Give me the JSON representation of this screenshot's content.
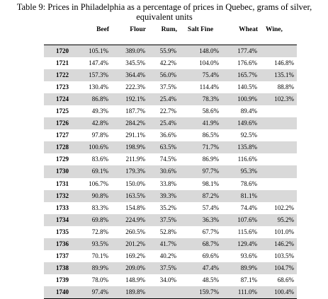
{
  "caption": "Table 9: Prices in Philadelphia as a percentage of prices in Quebec, grams of silver, equivalent units",
  "headers": [
    "",
    "Beef",
    "Flour",
    "Rum,",
    "Salt Fine",
    "Wheat",
    "Wine,"
  ],
  "rows": [
    [
      "1720",
      "105.1%",
      "389.0%",
      "55.9%",
      "148.0%",
      "177.4%",
      ""
    ],
    [
      "1721",
      "147.4%",
      "345.5%",
      "42.2%",
      "104.0%",
      "176.6%",
      "146.8%"
    ],
    [
      "1722",
      "157.3%",
      "364.4%",
      "56.0%",
      "75.4%",
      "165.7%",
      "135.1%"
    ],
    [
      "1723",
      "130.4%",
      "222.3%",
      "37.5%",
      "114.4%",
      "140.5%",
      "88.8%"
    ],
    [
      "1724",
      "86.8%",
      "192.1%",
      "25.4%",
      "78.3%",
      "100.9%",
      "102.3%"
    ],
    [
      "1725",
      "49.3%",
      "187.7%",
      "22.7%",
      "58.6%",
      "89.4%",
      ""
    ],
    [
      "1726",
      "42.8%",
      "284.2%",
      "25.4%",
      "41.9%",
      "149.6%",
      ""
    ],
    [
      "1727",
      "97.8%",
      "291.1%",
      "36.6%",
      "86.5%",
      "92.5%",
      ""
    ],
    [
      "1728",
      "100.6%",
      "198.9%",
      "63.5%",
      "71.7%",
      "135.8%",
      ""
    ],
    [
      "1729",
      "83.6%",
      "211.9%",
      "74.5%",
      "86.9%",
      "116.6%",
      ""
    ],
    [
      "1730",
      "69.1%",
      "179.3%",
      "30.6%",
      "97.7%",
      "95.3%",
      ""
    ],
    [
      "1731",
      "106.7%",
      "150.0%",
      "33.8%",
      "98.1%",
      "78.6%",
      ""
    ],
    [
      "1732",
      "90.8%",
      "163.5%",
      "39.3%",
      "87.2%",
      "81.1%",
      ""
    ],
    [
      "1733",
      "83.3%",
      "154.8%",
      "35.2%",
      "57.4%",
      "74.4%",
      "102.2%"
    ],
    [
      "1734",
      "69.8%",
      "224.9%",
      "37.5%",
      "36.3%",
      "107.6%",
      "95.2%"
    ],
    [
      "1735",
      "72.8%",
      "260.5%",
      "52.8%",
      "67.7%",
      "115.6%",
      "101.0%"
    ],
    [
      "1736",
      "93.5%",
      "201.2%",
      "41.7%",
      "68.7%",
      "129.4%",
      "146.2%"
    ],
    [
      "1737",
      "70.1%",
      "169.2%",
      "40.2%",
      "69.6%",
      "93.6%",
      "103.5%"
    ],
    [
      "1738",
      "89.9%",
      "209.0%",
      "37.5%",
      "47.4%",
      "89.9%",
      "104.7%"
    ],
    [
      "1739",
      "78.0%",
      "148.9%",
      "34.0%",
      "48.5%",
      "87.1%",
      "68.6%"
    ],
    [
      "1740",
      "97.4%",
      "189.8%",
      "",
      "159.7%",
      "111.0%",
      "100.4%"
    ]
  ]
}
